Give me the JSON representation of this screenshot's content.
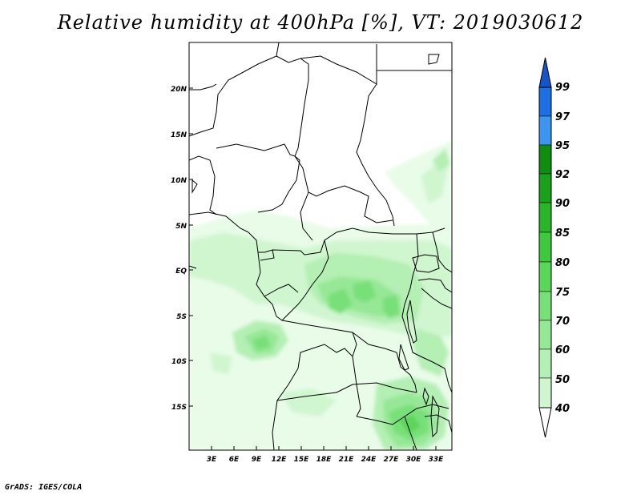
{
  "title": "Relative humidity at 400hPa [%], VT: 2019030612",
  "credit": "GrADS: IGES/COLA",
  "map": {
    "lon_ticks": [
      "3E",
      "6E",
      "9E",
      "12E",
      "15E",
      "18E",
      "21E",
      "24E",
      "27E",
      "30E",
      "33E"
    ],
    "lat_ticks": [
      "20N",
      "15N",
      "10N",
      "5N",
      "EQ",
      "5S",
      "10S",
      "15S"
    ]
  },
  "colorbar": {
    "levels": [
      "40",
      "50",
      "60",
      "70",
      "75",
      "80",
      "85",
      "90",
      "92",
      "95",
      "97",
      "99"
    ],
    "colors": [
      "#e8fce8",
      "#d0f6d0",
      "#b4efb4",
      "#96e896",
      "#78e078",
      "#5ad65a",
      "#3ec83e",
      "#2ab42a",
      "#1aa01a",
      "#108c10",
      "#3c96f0",
      "#1e6ee6",
      "#1455c8"
    ]
  }
}
